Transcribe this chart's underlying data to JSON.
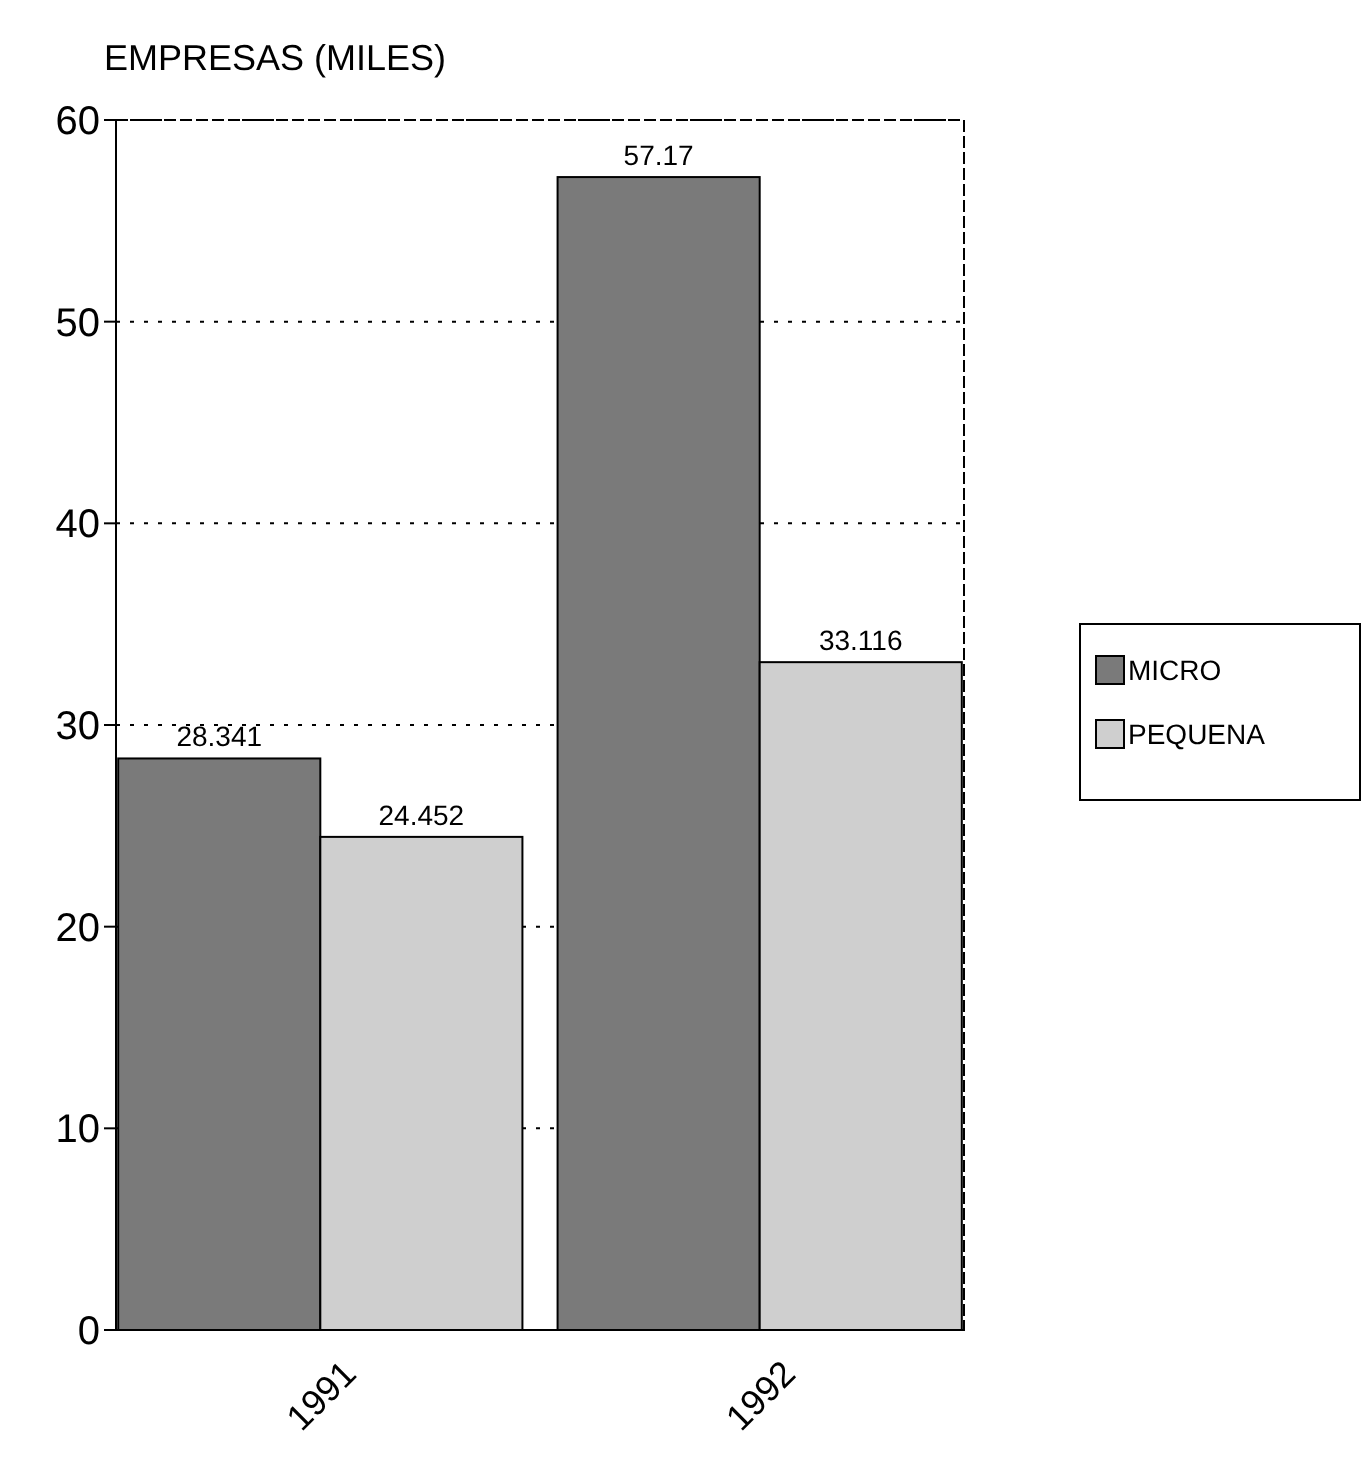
{
  "chart_data": {
    "type": "bar",
    "title": "EMPRESAS  (MILES)",
    "categories": [
      "1991",
      "1992"
    ],
    "series": [
      {
        "name": "MICRO",
        "color": "#7a7a7a",
        "values": [
          28.341,
          57.17
        ]
      },
      {
        "name": "PEQUENA",
        "color": "#cfcfcf",
        "values": [
          24.452,
          33.116
        ]
      }
    ],
    "ylim": [
      0,
      60
    ],
    "yticks": [
      0,
      10,
      20,
      30,
      40,
      50,
      60
    ],
    "grid": "y",
    "data_labels": true,
    "legend": "right"
  }
}
